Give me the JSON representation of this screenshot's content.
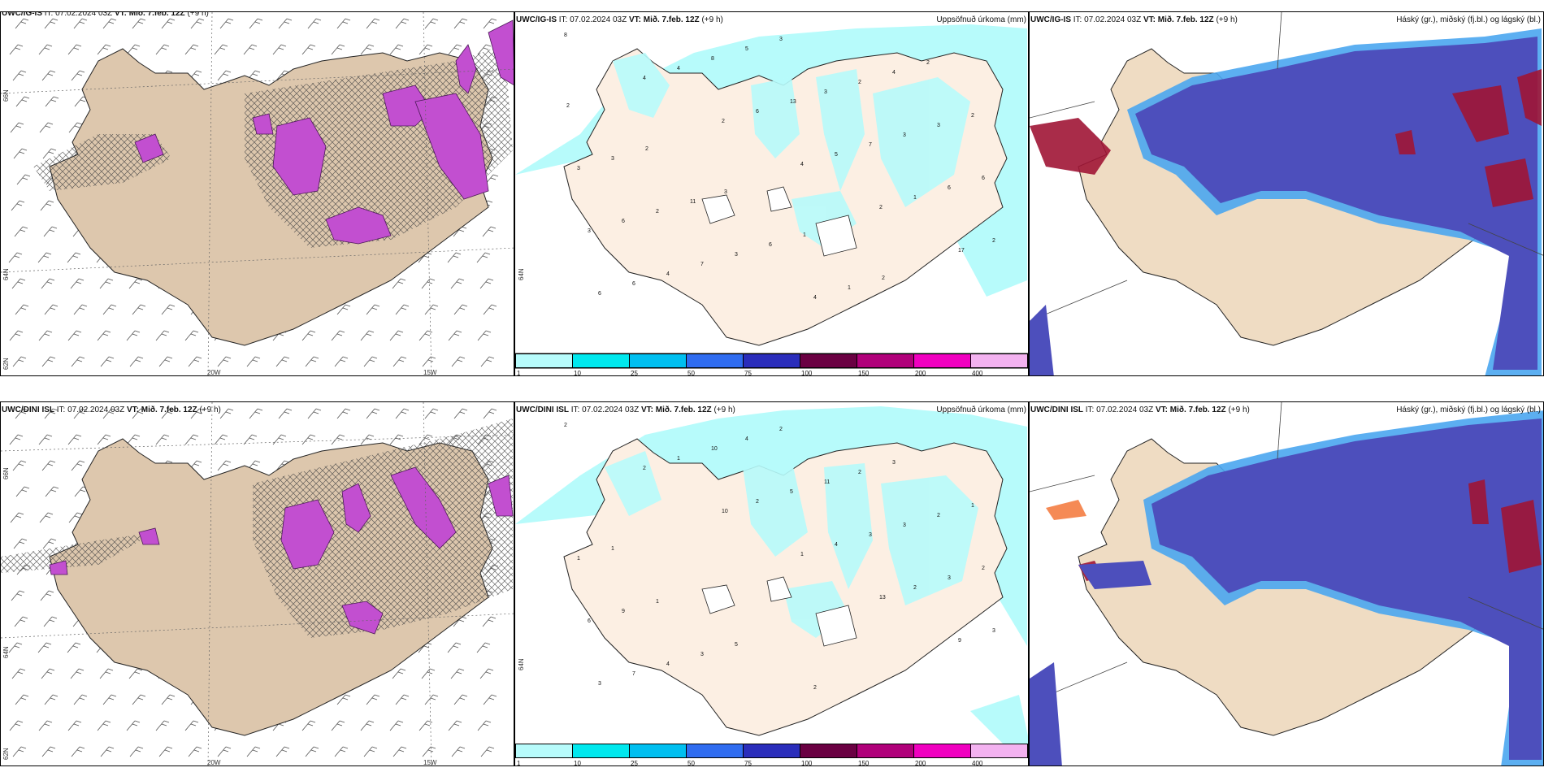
{
  "rows": [
    {
      "wind_panel": {
        "model": "UWC/IG-IS",
        "info": "IT: 07.02.2024 03Z",
        "vt_label": "VT: Mið. 7.feb. 12Z",
        "lead": "(+9 h)",
        "lat_labels": [
          "66N",
          "64N",
          "62N"
        ],
        "lon_labels": [
          "20W",
          "15W"
        ]
      },
      "precip_panel": {
        "model": "UWC/IG-IS",
        "info": "IT: 07.02.2024 03Z",
        "vt_label": "VT: Mið. 7.feb. 12Z",
        "lead": "(+9 h)",
        "right_title": "Uppsöfnuð úrkoma (mm)",
        "lat_label": "64N",
        "numbers": [
          "8",
          "4",
          "2",
          "4",
          "2",
          "17",
          "6",
          "4",
          "6",
          "5",
          "1",
          "2",
          "6",
          "8",
          "13",
          "7",
          "6",
          "3",
          "4",
          "5",
          "3",
          "3",
          "6",
          "6",
          "7",
          "3",
          "2",
          "3",
          "3",
          "2",
          "3",
          "4",
          "4",
          "2",
          "3",
          "11",
          "6",
          "1",
          "2",
          "2",
          "2",
          "3",
          "1",
          "2"
        ]
      },
      "cloud_panel": {
        "model": "UWC/IG-IS",
        "info": "IT: 07.02.2024 03Z",
        "vt_label": "VT: Mið. 7.feb. 12Z",
        "lead": "(+9 h)",
        "right_title": "Háský (gr.), miðský (fj.bl.) og lágský (bl.)"
      }
    },
    {
      "wind_panel": {
        "model": "UWC/DINI ISL",
        "info": "IT: 07.02.2024 03Z",
        "vt_label": "VT: Mið. 7.feb. 12Z",
        "lead": "(+9 h)",
        "lat_labels": [
          "66N",
          "64N",
          "62N"
        ],
        "lon_labels": [
          "20W",
          "15W"
        ]
      },
      "precip_panel": {
        "model": "UWC/DINI ISL",
        "info": "IT: 07.02.2024 03Z",
        "vt_label": "VT: Mið. 7.feb. 12Z",
        "lead": "(+9 h)",
        "right_title": "Uppsöfnuð úrkoma (mm)",
        "lat_label": "64N",
        "numbers": [
          "2",
          "2",
          "10",
          "1",
          "13",
          "9",
          "3",
          "1",
          "2",
          "4",
          "2",
          "3",
          "7",
          "10",
          "5",
          "3",
          "3",
          "6",
          "4",
          "4",
          "11",
          "3",
          "2",
          "9",
          "3",
          "2",
          "2",
          "2",
          "1",
          "1",
          "5",
          "2",
          "3",
          "1",
          "1"
        ]
      },
      "cloud_panel": {
        "model": "UWC/DINI ISL",
        "info": "IT: 07.02.2024 03Z",
        "vt_label": "VT: Mið. 7.feb. 12Z",
        "lead": "(+9 h)",
        "right_title": "Háský (gr.), miðský (fj.bl.) og lágský (bl.)"
      }
    }
  ],
  "colorbar": {
    "ticks": [
      "1",
      "10",
      "25",
      "50",
      "75",
      "100",
      "150",
      "200",
      "400"
    ],
    "colors": [
      "#b7fbfb",
      "#00e8ee",
      "#00bff0",
      "#2f6cf0",
      "#2a2dbb",
      "#6a0042",
      "#b0007a",
      "#f000c0",
      "#f3b2f0"
    ]
  },
  "colors": {
    "land": "#efdcc3",
    "land_fill_precip": "#fcefe3",
    "sea": "#ffffff",
    "wind_precip": "#c04fd1",
    "precip_light": "#b7fbfb",
    "cloud_low": "#4d4fbc",
    "cloud_mid": "#4aa6f0",
    "cloud_high": "#a01535"
  }
}
